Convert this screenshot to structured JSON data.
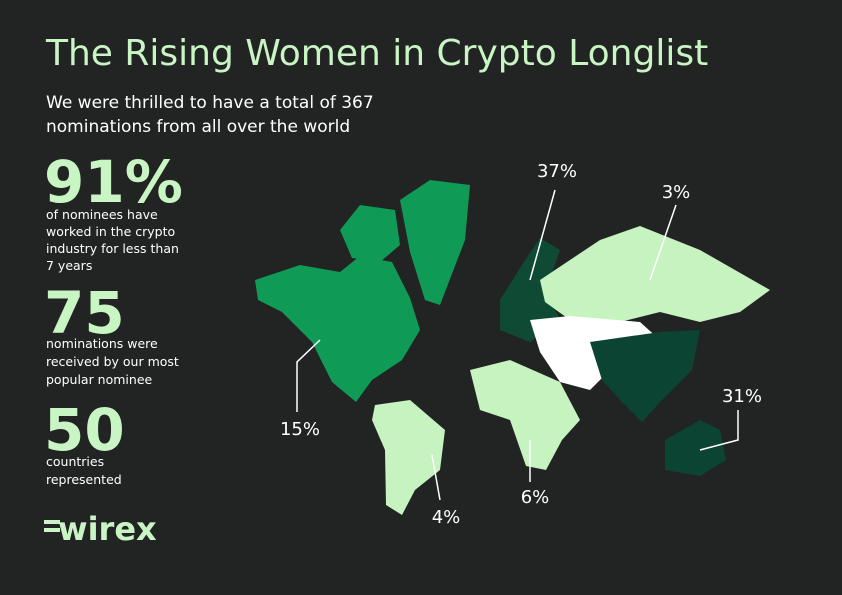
{
  "header": {
    "title": "The Rising  Women in Crypto Longlist",
    "subtitle": [
      "We were thrilled to have a total of 367",
      "nominations from all over the world"
    ]
  },
  "stats": [
    {
      "value": "91%",
      "description": [
        "of nominees have",
        "worked in the crypto",
        "industry for less than",
        "7 years"
      ]
    },
    {
      "value": "75",
      "description": [
        "nominations were",
        "received by our most",
        "popular nominee"
      ]
    },
    {
      "value": "50",
      "description": [
        "countries",
        "represented"
      ]
    }
  ],
  "map": {
    "regions": [
      {
        "label": "37%"
      },
      {
        "label": "3%"
      },
      {
        "label": "15%"
      },
      {
        "label": "4%"
      },
      {
        "label": "6%"
      },
      {
        "label": "31%"
      }
    ]
  },
  "logo": "wirex"
}
